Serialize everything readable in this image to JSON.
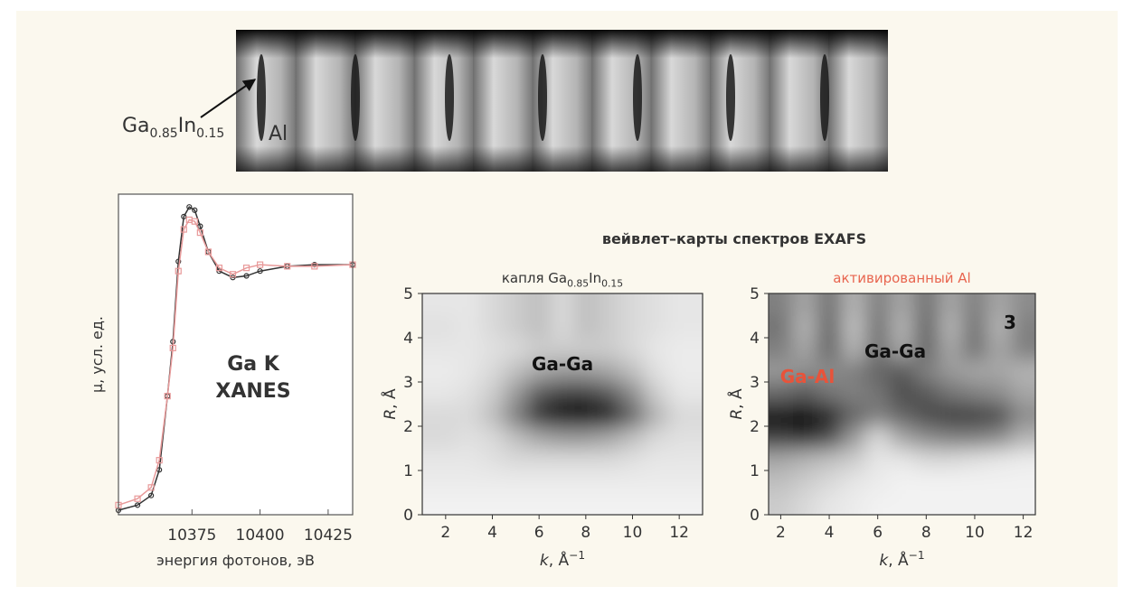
{
  "figure": {
    "strip_label": [
      {
        "text": "Ga"
      },
      {
        "sub": "0.85"
      },
      {
        "text": "In"
      },
      {
        "sub": "0.15"
      }
    ],
    "strip_label_2": "Al",
    "wavelet_title": "вейвлет–карты спектров EXAFS"
  },
  "chart_data": [
    {
      "type": "line",
      "annotation": [
        "Ga K",
        "XANES"
      ],
      "xlabel": [
        {
          "text": "энергия фотонов, эВ"
        }
      ],
      "ylabel": [
        {
          "text": "μ, усл. ед."
        }
      ],
      "x": [
        10348,
        10355,
        10360,
        10363,
        10366,
        10368,
        10370,
        10372,
        10374,
        10376,
        10378,
        10381,
        10385,
        10390,
        10395,
        10400,
        10410,
        10420,
        10434
      ],
      "series": [
        {
          "color": "#333333",
          "marker": "circle",
          "values": [
            0.014,
            0.03,
            0.06,
            0.14,
            0.37,
            0.54,
            0.79,
            0.93,
            0.96,
            0.95,
            0.9,
            0.82,
            0.76,
            0.74,
            0.745,
            0.76,
            0.775,
            0.78,
            0.78
          ]
        },
        {
          "color": "#e89a9a",
          "marker": "square",
          "values": [
            0.03,
            0.05,
            0.085,
            0.17,
            0.37,
            0.52,
            0.76,
            0.89,
            0.92,
            0.915,
            0.88,
            0.82,
            0.77,
            0.75,
            0.77,
            0.78,
            0.775,
            0.775,
            0.78
          ]
        }
      ],
      "xlim": [
        10348,
        10434
      ],
      "ylim": [
        0,
        1
      ],
      "xticks": [
        10375,
        10400,
        10425
      ]
    },
    {
      "type": "heatmap",
      "title": [
        {
          "text": "капля Ga"
        },
        {
          "sub": "0.85"
        },
        {
          "text": "In"
        },
        {
          "sub": "0.15"
        }
      ],
      "title_color": "#333333",
      "annotations": [
        {
          "text": "Ga-Ga",
          "color": "#111111"
        }
      ],
      "xlabel": [
        {
          "italic": "k"
        },
        {
          "text": ", Å"
        },
        {
          "sup": "−1"
        }
      ],
      "ylabel": [
        {
          "italic": "R"
        },
        {
          "text": ", Å"
        }
      ],
      "x": [
        2,
        3,
        4,
        5,
        6,
        7,
        8,
        9,
        10,
        11,
        12
      ],
      "y": [
        0.25,
        0.75,
        1.25,
        1.75,
        2.25,
        2.75,
        3.25,
        3.75,
        4.25,
        4.75
      ],
      "values": [
        [
          0.05,
          0.05,
          0.05,
          0.05,
          0.05,
          0.05,
          0.05,
          0.05,
          0.05,
          0.05,
          0.05
        ],
        [
          0.08,
          0.08,
          0.08,
          0.08,
          0.08,
          0.08,
          0.08,
          0.08,
          0.08,
          0.08,
          0.08
        ],
        [
          0.1,
          0.1,
          0.12,
          0.15,
          0.15,
          0.15,
          0.15,
          0.15,
          0.12,
          0.1,
          0.1
        ],
        [
          0.15,
          0.12,
          0.15,
          0.25,
          0.35,
          0.4,
          0.4,
          0.35,
          0.25,
          0.15,
          0.12
        ],
        [
          0.15,
          0.15,
          0.25,
          0.5,
          0.8,
          0.95,
          1,
          0.9,
          0.6,
          0.3,
          0.15
        ],
        [
          0.1,
          0.12,
          0.2,
          0.4,
          0.65,
          0.75,
          0.75,
          0.65,
          0.45,
          0.2,
          0.1
        ],
        [
          0.08,
          0.1,
          0.15,
          0.25,
          0.35,
          0.4,
          0.4,
          0.35,
          0.25,
          0.12,
          0.08
        ],
        [
          0.1,
          0.1,
          0.12,
          0.15,
          0.2,
          0.2,
          0.2,
          0.2,
          0.15,
          0.1,
          0.08
        ],
        [
          0.12,
          0.1,
          0.15,
          0.2,
          0.25,
          0.15,
          0.25,
          0.2,
          0.15,
          0.12,
          0.1
        ],
        [
          0.1,
          0.1,
          0.15,
          0.2,
          0.25,
          0.15,
          0.25,
          0.2,
          0.15,
          0.12,
          0.1
        ]
      ],
      "color_low": "#ffffff",
      "color_high": "#000000",
      "xlim": [
        1,
        13
      ],
      "ylim": [
        0,
        5
      ],
      "xticks": [
        2,
        4,
        6,
        8,
        10,
        12
      ],
      "yticks": [
        0,
        1,
        2,
        3,
        4,
        5
      ]
    },
    {
      "type": "heatmap",
      "title": [
        {
          "text": "активированный Al"
        }
      ],
      "title_color": "#e8654f",
      "annotations": [
        {
          "text": "Ga-Ga",
          "color": "#111111"
        },
        {
          "text": "Ga-Al",
          "color": "#e8533a"
        },
        {
          "text": "3",
          "color": "#111111"
        }
      ],
      "xlabel": [
        {
          "italic": "k"
        },
        {
          "text": ", Å"
        },
        {
          "sup": "−1"
        }
      ],
      "ylabel": [
        {
          "italic": "R"
        },
        {
          "text": ", Å"
        }
      ],
      "x": [
        2,
        3,
        4,
        5,
        6,
        7,
        8,
        9,
        10,
        11,
        12
      ],
      "y": [
        0.25,
        0.75,
        1.25,
        1.75,
        2.25,
        2.75,
        3.25,
        3.75,
        4.25,
        4.75
      ],
      "values": [
        [
          0.2,
          0.15,
          0.1,
          0.08,
          0.05,
          0.05,
          0.05,
          0.05,
          0.05,
          0.05,
          0.05
        ],
        [
          0.25,
          0.2,
          0.15,
          0.1,
          0.08,
          0.05,
          0.05,
          0.05,
          0.05,
          0.05,
          0.05
        ],
        [
          0.35,
          0.3,
          0.25,
          0.2,
          0.1,
          0.1,
          0.15,
          0.15,
          0.12,
          0.1,
          0.08
        ],
        [
          0.75,
          0.8,
          0.7,
          0.4,
          0.15,
          0.35,
          0.45,
          0.5,
          0.5,
          0.45,
          0.3
        ],
        [
          0.95,
          1,
          0.85,
          0.6,
          0.5,
          0.6,
          0.7,
          0.75,
          0.75,
          0.7,
          0.45
        ],
        [
          0.6,
          0.65,
          0.55,
          0.5,
          0.55,
          0.7,
          0.65,
          0.55,
          0.5,
          0.45,
          0.35
        ],
        [
          0.4,
          0.45,
          0.45,
          0.5,
          0.6,
          0.65,
          0.5,
          0.4,
          0.35,
          0.35,
          0.3
        ],
        [
          0.5,
          0.35,
          0.6,
          0.3,
          0.55,
          0.35,
          0.6,
          0.35,
          0.55,
          0.35,
          0.5
        ],
        [
          0.55,
          0.3,
          0.6,
          0.25,
          0.55,
          0.3,
          0.6,
          0.3,
          0.55,
          0.3,
          0.5
        ],
        [
          0.5,
          0.35,
          0.55,
          0.3,
          0.5,
          0.35,
          0.55,
          0.35,
          0.5,
          0.35,
          0.45
        ]
      ],
      "color_low": "#ffffff",
      "color_high": "#000000",
      "xlim": [
        1.5,
        12.5
      ],
      "ylim": [
        0,
        5
      ],
      "xticks": [
        2,
        4,
        6,
        8,
        10,
        12
      ],
      "yticks": [
        0,
        1,
        2,
        3,
        4,
        5
      ]
    }
  ]
}
